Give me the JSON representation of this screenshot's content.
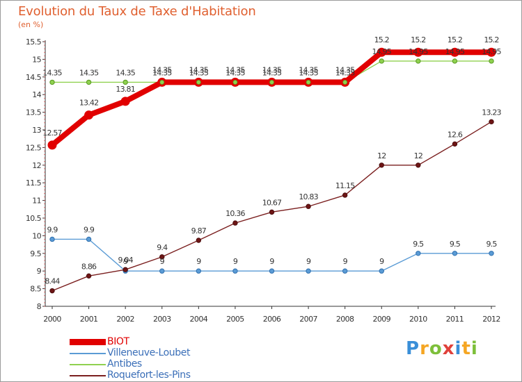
{
  "title": "Evolution du Taux de Taxe d'Habitation",
  "subtitle": "(en %)",
  "logo": {
    "text": "Proxiti",
    "letters": [
      {
        "ch": "P",
        "color": "#3a8fd8"
      },
      {
        "ch": "r",
        "color": "#f5a623"
      },
      {
        "ch": "o",
        "color": "#7dbf3a"
      },
      {
        "ch": "x",
        "color": "#e0403a"
      },
      {
        "ch": "i",
        "color": "#3a8fd8"
      },
      {
        "ch": "t",
        "color": "#f5a623"
      },
      {
        "ch": "i",
        "color": "#7dbf3a"
      }
    ]
  },
  "chart_data": {
    "type": "line",
    "x": [
      "2000",
      "2001",
      "2002",
      "2003",
      "2004",
      "2005",
      "2006",
      "2007",
      "2008",
      "2009",
      "2010",
      "2011",
      "2012"
    ],
    "ylim": [
      8,
      15.5
    ],
    "yticks": [
      8,
      8.5,
      9,
      9.5,
      10,
      10.5,
      11,
      11.5,
      12,
      12.5,
      13,
      13.5,
      14,
      14.5,
      15,
      15.5
    ],
    "grid": false,
    "legend_placement": "bottom-left",
    "series": [
      {
        "name": "BIOT",
        "color": "#e10000",
        "values": [
          12.57,
          13.42,
          13.81,
          14.35,
          14.35,
          14.35,
          14.35,
          14.35,
          14.35,
          15.2,
          15.2,
          15.2,
          15.2
        ],
        "labels": [
          "12.57",
          "13.42",
          "13.81",
          "14.35",
          "14.35",
          "14.35",
          "14.35",
          "14.35",
          "14.35",
          "15.2",
          "15.2",
          "15.2",
          "15.2"
        ]
      },
      {
        "name": "Villeneuve-Loubet",
        "color": "#5a9bd5",
        "values": [
          9.9,
          9.9,
          9,
          9,
          9,
          9,
          9,
          9,
          9,
          9,
          9.5,
          9.5,
          9.5
        ],
        "labels": [
          "9.9",
          "9.9",
          "9",
          "9",
          "9",
          "9",
          "9",
          "9",
          "9",
          "9",
          "9.5",
          "9.5",
          "9.5"
        ]
      },
      {
        "name": "Antibes",
        "color": "#8fd14f",
        "values": [
          14.35,
          14.35,
          14.35,
          14.35,
          14.35,
          14.35,
          14.35,
          14.35,
          14.35,
          14.95,
          14.95,
          14.95,
          14.95
        ],
        "labels": [
          "14.35",
          "14.35",
          "14.35",
          "14.35",
          "14.35",
          "14.35",
          "14.35",
          "14.35",
          "14.35",
          "14.95",
          "14.95",
          "14.95",
          "14.95"
        ]
      },
      {
        "name": "Roquefort-les-Pins",
        "color": "#7a1e1e",
        "values": [
          8.44,
          8.86,
          9.04,
          9.4,
          9.87,
          10.36,
          10.67,
          10.83,
          11.15,
          12,
          12,
          12.6,
          13.23
        ],
        "labels": [
          "8.44",
          "8.86",
          "9.04",
          "9.4",
          "9.87",
          "10.36",
          "10.67",
          "10.83",
          "11.15",
          "12",
          "12",
          "12.6",
          "13.23"
        ]
      }
    ]
  }
}
